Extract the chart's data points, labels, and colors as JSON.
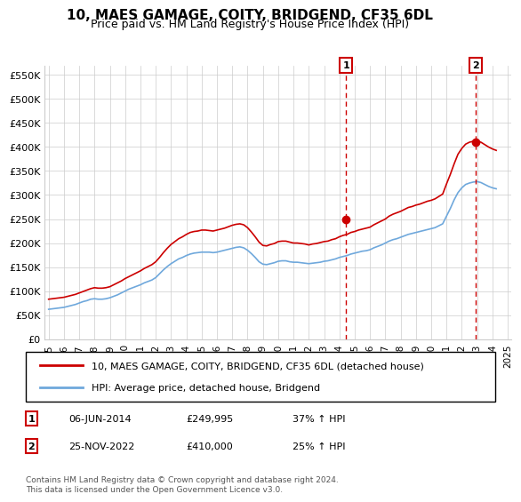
{
  "title": "10, MAES GAMAGE, COITY, BRIDGEND, CF35 6DL",
  "subtitle": "Price paid vs. HM Land Registry's House Price Index (HPI)",
  "ylabel": "",
  "ylim": [
    0,
    570000
  ],
  "yticks": [
    0,
    50000,
    100000,
    150000,
    200000,
    250000,
    300000,
    350000,
    400000,
    450000,
    500000,
    550000
  ],
  "ytick_labels": [
    "£0",
    "£50K",
    "£100K",
    "£150K",
    "£200K",
    "£250K",
    "£300K",
    "£350K",
    "£400K",
    "£450K",
    "£500K",
    "£550K"
  ],
  "hpi_color": "#6fa8dc",
  "price_color": "#cc0000",
  "marker1_date": 2014.43,
  "marker1_price": 249995,
  "marker1_label": "06-JUN-2014",
  "marker1_value": "£249,995",
  "marker1_pct": "37% ↑ HPI",
  "marker2_date": 2022.9,
  "marker2_price": 410000,
  "marker2_label": "25-NOV-2022",
  "marker2_value": "£410,000",
  "marker2_pct": "25% ↑ HPI",
  "legend_line1": "10, MAES GAMAGE, COITY, BRIDGEND, CF35 6DL (detached house)",
  "legend_line2": "HPI: Average price, detached house, Bridgend",
  "footnote": "Contains HM Land Registry data © Crown copyright and database right 2024.\nThis data is licensed under the Open Government Licence v3.0.",
  "vline1_x": 2014.43,
  "vline2_x": 2022.9,
  "hpi_series_x": [
    1995,
    1995.25,
    1995.5,
    1995.75,
    1996,
    1996.25,
    1996.5,
    1996.75,
    1997,
    1997.25,
    1997.5,
    1997.75,
    1998,
    1998.25,
    1998.5,
    1998.75,
    1999,
    1999.25,
    1999.5,
    1999.75,
    2000,
    2000.25,
    2000.5,
    2000.75,
    2001,
    2001.25,
    2001.5,
    2001.75,
    2002,
    2002.25,
    2002.5,
    2002.75,
    2003,
    2003.25,
    2003.5,
    2003.75,
    2004,
    2004.25,
    2004.5,
    2004.75,
    2005,
    2005.25,
    2005.5,
    2005.75,
    2006,
    2006.25,
    2006.5,
    2006.75,
    2007,
    2007.25,
    2007.5,
    2007.75,
    2008,
    2008.25,
    2008.5,
    2008.75,
    2009,
    2009.25,
    2009.5,
    2009.75,
    2010,
    2010.25,
    2010.5,
    2010.75,
    2011,
    2011.25,
    2011.5,
    2011.75,
    2012,
    2012.25,
    2012.5,
    2012.75,
    2013,
    2013.25,
    2013.5,
    2013.75,
    2014,
    2014.25,
    2014.5,
    2014.75,
    2015,
    2015.25,
    2015.5,
    2015.75,
    2016,
    2016.25,
    2016.5,
    2016.75,
    2017,
    2017.25,
    2017.5,
    2017.75,
    2018,
    2018.25,
    2018.5,
    2018.75,
    2019,
    2019.25,
    2019.5,
    2019.75,
    2020,
    2020.25,
    2020.5,
    2020.75,
    2021,
    2021.25,
    2021.5,
    2021.75,
    2022,
    2022.25,
    2022.5,
    2022.75,
    2023,
    2023.25,
    2023.5,
    2023.75,
    2024,
    2024.25
  ],
  "hpi_series_y": [
    62000,
    63000,
    64000,
    65000,
    66000,
    68000,
    70000,
    72000,
    75000,
    78000,
    80000,
    83000,
    84000,
    83000,
    83000,
    84000,
    86000,
    89000,
    92000,
    96000,
    100000,
    104000,
    107000,
    110000,
    113000,
    117000,
    120000,
    123000,
    128000,
    136000,
    144000,
    151000,
    157000,
    162000,
    167000,
    170000,
    174000,
    177000,
    179000,
    180000,
    181000,
    181000,
    181000,
    180000,
    181000,
    183000,
    185000,
    187000,
    189000,
    191000,
    192000,
    190000,
    185000,
    178000,
    170000,
    161000,
    156000,
    155000,
    157000,
    159000,
    162000,
    163000,
    163000,
    161000,
    160000,
    160000,
    159000,
    158000,
    157000,
    158000,
    159000,
    160000,
    162000,
    163000,
    165000,
    167000,
    170000,
    172000,
    174000,
    177000,
    179000,
    181000,
    183000,
    184000,
    186000,
    190000,
    193000,
    196000,
    200000,
    204000,
    207000,
    209000,
    212000,
    215000,
    218000,
    220000,
    222000,
    224000,
    226000,
    228000,
    230000,
    232000,
    236000,
    240000,
    256000,
    272000,
    290000,
    305000,
    315000,
    322000,
    325000,
    327000,
    328000,
    326000,
    322000,
    318000,
    315000,
    313000
  ],
  "price_series_x": [
    1995,
    1995.25,
    1995.5,
    1995.75,
    1996,
    1996.25,
    1996.5,
    1996.75,
    1997,
    1997.25,
    1997.5,
    1997.75,
    1998,
    1998.25,
    1998.5,
    1998.75,
    1999,
    1999.25,
    1999.5,
    1999.75,
    2000,
    2000.25,
    2000.5,
    2000.75,
    2001,
    2001.25,
    2001.5,
    2001.75,
    2002,
    2002.25,
    2002.5,
    2002.75,
    2003,
    2003.25,
    2003.5,
    2003.75,
    2004,
    2004.25,
    2004.5,
    2004.75,
    2005,
    2005.25,
    2005.5,
    2005.75,
    2006,
    2006.25,
    2006.5,
    2006.75,
    2007,
    2007.25,
    2007.5,
    2007.75,
    2008,
    2008.25,
    2008.5,
    2008.75,
    2009,
    2009.25,
    2009.5,
    2009.75,
    2010,
    2010.25,
    2010.5,
    2010.75,
    2011,
    2011.25,
    2011.5,
    2011.75,
    2012,
    2012.25,
    2012.5,
    2012.75,
    2013,
    2013.25,
    2013.5,
    2013.75,
    2014,
    2014.25,
    2014.5,
    2014.75,
    2015,
    2015.25,
    2015.5,
    2015.75,
    2016,
    2016.25,
    2016.5,
    2016.75,
    2017,
    2017.25,
    2017.5,
    2017.75,
    2018,
    2018.25,
    2018.5,
    2018.75,
    2019,
    2019.25,
    2019.5,
    2019.75,
    2020,
    2020.25,
    2020.5,
    2020.75,
    2021,
    2021.25,
    2021.5,
    2021.75,
    2022,
    2022.25,
    2022.5,
    2022.75,
    2023,
    2023.25,
    2023.5,
    2023.75,
    2024,
    2024.25
  ],
  "price_series_y": [
    83000,
    84000,
    85000,
    86000,
    87000,
    89000,
    91000,
    93000,
    96000,
    99000,
    102000,
    105000,
    107000,
    106000,
    106000,
    107000,
    109000,
    113000,
    117000,
    121000,
    126000,
    130000,
    134000,
    138000,
    142000,
    147000,
    151000,
    155000,
    161000,
    170000,
    180000,
    189000,
    197000,
    203000,
    209000,
    213000,
    218000,
    222000,
    224000,
    225000,
    227000,
    227000,
    226000,
    225000,
    227000,
    229000,
    231000,
    234000,
    237000,
    239000,
    240000,
    238000,
    232000,
    223000,
    213000,
    202000,
    195000,
    194000,
    197000,
    199000,
    203000,
    204000,
    204000,
    202000,
    200000,
    200000,
    199000,
    198000,
    196000,
    198000,
    199000,
    201000,
    203000,
    204000,
    207000,
    209000,
    213000,
    216000,
    218000,
    222000,
    224000,
    227000,
    229000,
    231000,
    233000,
    238000,
    242000,
    246000,
    250000,
    256000,
    260000,
    263000,
    266000,
    270000,
    274000,
    276000,
    279000,
    281000,
    284000,
    287000,
    289000,
    292000,
    297000,
    302000,
    323000,
    343000,
    365000,
    385000,
    397000,
    406000,
    410000,
    412000,
    412000,
    410000,
    405000,
    400000,
    396000,
    393000
  ],
  "xtick_years": [
    1995,
    1996,
    1997,
    1998,
    1999,
    2000,
    2001,
    2002,
    2003,
    2004,
    2005,
    2006,
    2007,
    2008,
    2009,
    2010,
    2011,
    2012,
    2013,
    2014,
    2015,
    2016,
    2017,
    2018,
    2019,
    2020,
    2021,
    2022,
    2023,
    2024,
    2025
  ],
  "xlim": [
    1994.75,
    2025.25
  ],
  "background_color": "#ffffff",
  "grid_color": "#cccccc"
}
